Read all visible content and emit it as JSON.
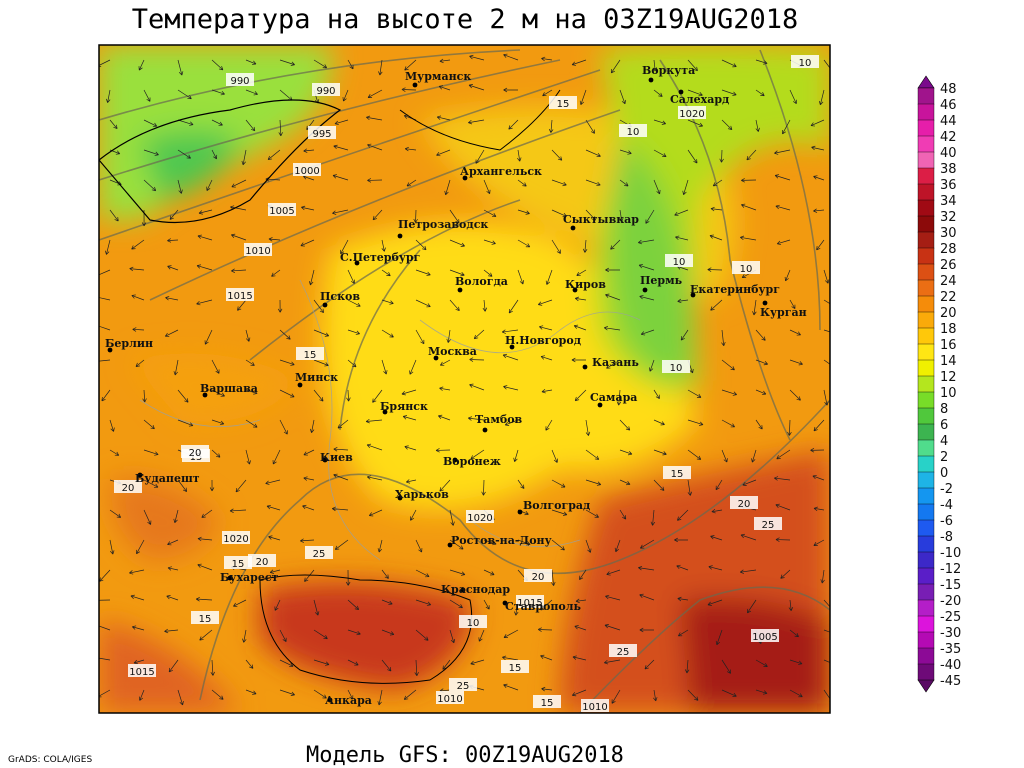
{
  "title": "Температура на высоте 2 м на 03Z19AUG2018",
  "footer": "Модель GFS: 00Z19AUG2018",
  "credit": "GrADS: COLA/IGES",
  "cities": [
    "Мурманск",
    "Воркута",
    "Салехард",
    "Архангельск",
    "Петрозаводск",
    "Сыктывкар",
    "С.Петербург",
    "Вологда",
    "Киров",
    "Пермь",
    "Екатеринбург",
    "Курган",
    "Псков",
    "Берлин",
    "Н.Новгород",
    "Москва",
    "Минск",
    "Казань",
    "Варшава",
    "Самара",
    "Брянск",
    "Тамбов",
    "Воронеж",
    "Киев",
    "Будапешт",
    "Харьков",
    "Волгоград",
    "Ростов-на-Дону",
    "Бухарест",
    "Краснодар",
    "Ставрополь",
    "Анкара"
  ],
  "contour_labels": [
    990,
    990,
    995,
    1000,
    1005,
    1010,
    1015,
    1020,
    1020,
    1020,
    1015,
    1010,
    1005,
    1015,
    1010,
    15,
    10,
    10,
    10,
    10,
    10,
    15,
    20,
    15,
    15,
    20,
    15,
    20,
    25,
    20,
    25,
    25,
    20,
    15,
    15,
    10,
    15,
    25
  ],
  "colorbar": {
    "labels": [
      48,
      46,
      44,
      42,
      40,
      38,
      36,
      34,
      32,
      30,
      28,
      26,
      24,
      22,
      20,
      18,
      16,
      14,
      12,
      10,
      8,
      6,
      4,
      2,
      0,
      -2,
      -4,
      -6,
      -8,
      -10,
      -12,
      -15,
      -20,
      -25,
      -30,
      -35,
      -40,
      -45
    ],
    "colors": [
      "#7a0a8c",
      "#a0148c",
      "#c8149c",
      "#e61eaa",
      "#f03cb4",
      "#f064b4",
      "#dc1e46",
      "#be1428",
      "#a00a14",
      "#8c0a0a",
      "#a51e14",
      "#c83214",
      "#dc5014",
      "#eb6e14",
      "#f58c0a",
      "#faaa0a",
      "#ffc80a",
      "#ffe614",
      "#f0f000",
      "#b4e61e",
      "#78dc28",
      "#50c83c",
      "#3cb450",
      "#50dc8c",
      "#28d2c8",
      "#1eb4e6",
      "#1496f0",
      "#1478f0",
      "#1e5af0",
      "#283cdc",
      "#3c28c8",
      "#5a1ec8",
      "#781eb4",
      "#b41ec8",
      "#dc14dc",
      "#b40ab4",
      "#8c0a96",
      "#6e0a78",
      "#5a0a64"
    ]
  }
}
